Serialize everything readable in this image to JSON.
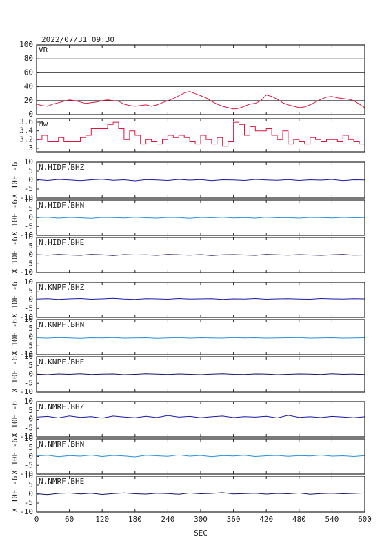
{
  "title": "2022/07/31 09:30",
  "chart_data": [
    {
      "type": "line",
      "label": "VR",
      "color": "#e0143c",
      "grid": true,
      "xlim": [
        0,
        600
      ],
      "ylim": [
        0,
        100
      ],
      "yticks": [
        0,
        20,
        40,
        60,
        80,
        100
      ],
      "x": [
        0,
        10,
        20,
        30,
        40,
        50,
        60,
        70,
        80,
        90,
        100,
        110,
        120,
        130,
        140,
        150,
        160,
        170,
        180,
        190,
        200,
        210,
        220,
        230,
        240,
        250,
        260,
        270,
        280,
        290,
        300,
        310,
        320,
        330,
        340,
        350,
        360,
        370,
        380,
        390,
        400,
        410,
        420,
        430,
        440,
        450,
        460,
        470,
        480,
        490,
        500,
        510,
        520,
        530,
        540,
        550,
        560,
        570,
        580,
        590,
        600
      ],
      "values": [
        15,
        13,
        12,
        15,
        17,
        19,
        21,
        20,
        18,
        16,
        17,
        18,
        20,
        21,
        20,
        19,
        15,
        13,
        12,
        13,
        14,
        12,
        14,
        17,
        20,
        23,
        27,
        31,
        33,
        30,
        27,
        24,
        19,
        15,
        12,
        10,
        8,
        9,
        12,
        15,
        16,
        20,
        28,
        26,
        22,
        17,
        14,
        12,
        10,
        11,
        14,
        18,
        22,
        25,
        26,
        24,
        23,
        22,
        20,
        15,
        10
      ]
    },
    {
      "type": "step",
      "label": "Mw",
      "color": "#e0143c",
      "grid": false,
      "xlim": [
        0,
        600
      ],
      "ylim": [
        2.92,
        3.68
      ],
      "yticks": [
        3.0,
        3.2,
        3.4,
        3.6
      ],
      "x": [
        0,
        10,
        20,
        30,
        40,
        50,
        60,
        70,
        80,
        90,
        100,
        110,
        120,
        130,
        140,
        150,
        160,
        170,
        180,
        190,
        200,
        210,
        220,
        230,
        240,
        250,
        260,
        270,
        280,
        290,
        300,
        310,
        320,
        330,
        340,
        350,
        360,
        370,
        380,
        390,
        400,
        410,
        420,
        430,
        440,
        450,
        460,
        470,
        480,
        490,
        500,
        510,
        520,
        530,
        540,
        550,
        560,
        570,
        580,
        590,
        600
      ],
      "values": [
        3.2,
        3.3,
        3.15,
        3.15,
        3.25,
        3.15,
        3.15,
        3.15,
        3.25,
        3.3,
        3.45,
        3.45,
        3.45,
        3.55,
        3.6,
        3.45,
        3.2,
        3.4,
        3.3,
        3.1,
        3.2,
        3.15,
        3.1,
        3.2,
        3.3,
        3.25,
        3.3,
        3.25,
        3.15,
        3.1,
        3.3,
        3.2,
        3.1,
        3.25,
        3.05,
        3.15,
        3.6,
        3.55,
        3.3,
        3.5,
        3.4,
        3.4,
        3.45,
        3.3,
        3.2,
        3.4,
        3.1,
        3.2,
        3.15,
        3.1,
        3.25,
        3.2,
        3.15,
        3.2,
        3.2,
        3.15,
        3.3,
        3.2,
        3.15,
        3.1,
        3.05
      ]
    },
    {
      "type": "line",
      "label": "N.HIDF.BHZ",
      "ylabel": "X 10E -6",
      "color": "#1a1aa8",
      "xlim": [
        0,
        600
      ],
      "ylim": [
        -10,
        10
      ],
      "yticks": [
        10,
        5,
        0,
        -5,
        -10
      ],
      "x": [
        0,
        20,
        40,
        60,
        80,
        100,
        120,
        140,
        160,
        180,
        200,
        220,
        240,
        260,
        280,
        300,
        320,
        340,
        360,
        380,
        400,
        420,
        440,
        460,
        480,
        500,
        520,
        540,
        560,
        580,
        600
      ],
      "values": [
        0.3,
        -0.2,
        0.4,
        0.1,
        -0.3,
        0.2,
        0.5,
        -0.1,
        0.2,
        -0.4,
        0.3,
        0.1,
        -0.2,
        0.4,
        0.0,
        0.3,
        -0.3,
        0.2,
        0.1,
        -0.2,
        0.4,
        0.1,
        -0.1,
        0.3,
        -0.2,
        0.2,
        0.0,
        0.4,
        -0.3,
        0.2,
        0.1
      ]
    },
    {
      "type": "line",
      "label": "N.HIDF.BHN",
      "ylabel": "X 10E -6",
      "color": "#2a90e0",
      "xlim": [
        0,
        600
      ],
      "ylim": [
        -10,
        10
      ],
      "yticks": [
        10,
        5,
        0,
        -5,
        -10
      ],
      "x": [
        0,
        20,
        40,
        60,
        80,
        100,
        120,
        140,
        160,
        180,
        200,
        220,
        240,
        260,
        280,
        300,
        320,
        340,
        360,
        380,
        400,
        420,
        440,
        460,
        480,
        500,
        520,
        540,
        560,
        580,
        600
      ],
      "values": [
        0.1,
        0.3,
        -0.2,
        0.2,
        0.0,
        -0.3,
        0.2,
        0.1,
        -0.1,
        0.3,
        0.0,
        -0.2,
        0.2,
        0.1,
        -0.3,
        0.2,
        0.0,
        0.3,
        -0.1,
        0.1,
        -0.2,
        0.3,
        0.0,
        0.1,
        -0.2,
        0.2,
        0.1,
        -0.1,
        0.2,
        0.0,
        0.1
      ]
    },
    {
      "type": "line",
      "label": "N.HIDF.BHE",
      "ylabel": "X 10E -6",
      "color": "#141466",
      "xlim": [
        0,
        600
      ],
      "ylim": [
        -10,
        10
      ],
      "yticks": [
        10,
        5,
        0,
        -5,
        -10
      ],
      "x": [
        0,
        20,
        40,
        60,
        80,
        100,
        120,
        140,
        160,
        180,
        200,
        220,
        240,
        260,
        280,
        300,
        320,
        340,
        360,
        380,
        400,
        420,
        440,
        460,
        480,
        500,
        520,
        540,
        560,
        580,
        600
      ],
      "values": [
        0.2,
        -0.1,
        0.3,
        0.0,
        -0.2,
        0.3,
        0.1,
        -0.3,
        0.2,
        0.0,
        0.1,
        -0.2,
        0.3,
        0.1,
        -0.1,
        0.2,
        -0.3,
        0.1,
        0.2,
        0.0,
        -0.2,
        0.3,
        0.1,
        -0.1,
        0.2,
        0.0,
        -0.2,
        0.1,
        0.3,
        -0.1,
        0.0
      ]
    },
    {
      "type": "line",
      "label": "N.KNPF.BHZ",
      "ylabel": "X 10E -6",
      "color": "#1a1aa8",
      "xlim": [
        0,
        600
      ],
      "ylim": [
        -10,
        10
      ],
      "yticks": [
        10,
        5,
        0,
        -5,
        -10
      ],
      "x": [
        0,
        20,
        40,
        60,
        80,
        100,
        120,
        140,
        160,
        180,
        200,
        220,
        240,
        260,
        280,
        300,
        320,
        340,
        360,
        380,
        400,
        420,
        440,
        460,
        480,
        500,
        520,
        540,
        560,
        580,
        600
      ],
      "values": [
        0.5,
        0.7,
        0.3,
        0.6,
        0.8,
        0.4,
        0.6,
        0.9,
        0.5,
        0.3,
        0.7,
        0.6,
        0.4,
        0.8,
        0.5,
        0.6,
        0.7,
        0.3,
        0.6,
        0.5,
        0.8,
        0.4,
        0.6,
        0.7,
        0.5,
        0.4,
        0.8,
        0.6,
        0.5,
        0.7,
        0.6
      ]
    },
    {
      "type": "line",
      "label": "N.KNPF.BHN",
      "ylabel": "X 10E -6",
      "color": "#2a90e0",
      "xlim": [
        0,
        600
      ],
      "ylim": [
        -10,
        10
      ],
      "yticks": [
        10,
        5,
        0,
        -5,
        -10
      ],
      "x": [
        0,
        20,
        40,
        60,
        80,
        100,
        120,
        140,
        160,
        180,
        200,
        220,
        240,
        260,
        280,
        300,
        320,
        340,
        360,
        380,
        400,
        420,
        440,
        460,
        480,
        500,
        520,
        540,
        560,
        580,
        600
      ],
      "values": [
        -0.4,
        -0.6,
        -0.3,
        -0.5,
        -0.7,
        -0.4,
        -0.5,
        -0.3,
        -0.6,
        -0.5,
        -0.4,
        -0.7,
        -0.5,
        -0.3,
        -0.6,
        -0.4,
        -0.5,
        -0.6,
        -0.3,
        -0.5,
        -0.4,
        -0.6,
        -0.5,
        -0.4,
        -0.3,
        -0.6,
        -0.5,
        -0.4,
        -0.6,
        -0.5,
        -0.4
      ]
    },
    {
      "type": "line",
      "label": "N.KNPF.BHE",
      "ylabel": "X 10E -6",
      "color": "#141466",
      "xlim": [
        0,
        600
      ],
      "ylim": [
        -10,
        10
      ],
      "yticks": [
        10,
        5,
        0,
        -5,
        -10
      ],
      "x": [
        0,
        20,
        40,
        60,
        80,
        100,
        120,
        140,
        160,
        180,
        200,
        220,
        240,
        260,
        280,
        300,
        320,
        340,
        360,
        380,
        400,
        420,
        440,
        460,
        480,
        500,
        520,
        540,
        560,
        580,
        600
      ],
      "values": [
        0.1,
        -0.2,
        0.2,
        0.0,
        0.3,
        -0.1,
        0.1,
        0.2,
        -0.2,
        0.0,
        0.3,
        0.1,
        -0.1,
        0.2,
        0.0,
        -0.2,
        0.1,
        0.3,
        0.0,
        -0.1,
        0.2,
        0.1,
        -0.2,
        0.0,
        0.2,
        0.1,
        -0.1,
        0.3,
        0.0,
        0.1,
        -0.1
      ]
    },
    {
      "type": "line",
      "label": "N.NMRF.BHZ",
      "ylabel": "X 10E -6",
      "color": "#1a1aa8",
      "xlim": [
        0,
        600
      ],
      "ylim": [
        -10,
        10
      ],
      "yticks": [
        10,
        5,
        0,
        -5,
        -10
      ],
      "x": [
        0,
        20,
        40,
        60,
        80,
        100,
        120,
        140,
        160,
        180,
        200,
        220,
        240,
        260,
        280,
        300,
        320,
        340,
        360,
        380,
        400,
        420,
        440,
        460,
        480,
        500,
        520,
        540,
        560,
        580,
        600
      ],
      "values": [
        1.2,
        1.6,
        0.8,
        1.9,
        1.1,
        1.5,
        0.7,
        1.8,
        1.3,
        0.9,
        1.7,
        1.0,
        2.1,
        1.2,
        1.6,
        0.9,
        1.4,
        1.8,
        1.0,
        1.5,
        1.2,
        1.7,
        0.8,
        2.2,
        1.1,
        1.4,
        1.0,
        1.6,
        1.3,
        0.9,
        1.4
      ]
    },
    {
      "type": "line",
      "label": "N.NMRF.BHN",
      "ylabel": "X 10E -6",
      "color": "#2a90e0",
      "xlim": [
        0,
        600
      ],
      "ylim": [
        -10,
        10
      ],
      "yticks": [
        10,
        5,
        0,
        -5,
        -10
      ],
      "x": [
        0,
        20,
        40,
        60,
        80,
        100,
        120,
        140,
        160,
        180,
        200,
        220,
        240,
        260,
        280,
        300,
        320,
        340,
        360,
        380,
        400,
        420,
        440,
        460,
        480,
        500,
        520,
        540,
        560,
        580,
        600
      ],
      "values": [
        0.3,
        0.7,
        -0.1,
        0.5,
        0.2,
        0.8,
        0.0,
        0.6,
        0.3,
        -0.2,
        0.7,
        0.4,
        0.1,
        0.9,
        0.2,
        0.6,
        -0.1,
        0.5,
        0.3,
        0.7,
        0.0,
        0.4,
        0.6,
        0.1,
        0.5,
        0.3,
        0.8,
        0.2,
        0.4,
        0.0,
        0.5
      ]
    },
    {
      "type": "line",
      "label": "N.NMRF.BHE",
      "ylabel": "X 10E -6",
      "color": "#141466",
      "xlabel": "SEC",
      "xlim": [
        0,
        600
      ],
      "ylim": [
        -10,
        10
      ],
      "yticks": [
        10,
        5,
        0,
        -5,
        -10
      ],
      "xticks": [
        0,
        60,
        120,
        180,
        240,
        300,
        360,
        420,
        480,
        540,
        600
      ],
      "x": [
        0,
        20,
        40,
        60,
        80,
        100,
        120,
        140,
        160,
        180,
        200,
        220,
        240,
        260,
        280,
        300,
        320,
        340,
        360,
        380,
        400,
        420,
        440,
        460,
        480,
        500,
        520,
        540,
        560,
        580,
        600
      ],
      "values": [
        0.2,
        -0.3,
        0.4,
        0.6,
        0.1,
        0.5,
        -0.2,
        0.3,
        0.7,
        0.2,
        0.0,
        0.5,
        0.3,
        -0.1,
        0.6,
        0.2,
        0.4,
        0.8,
        0.1,
        0.3,
        0.5,
        0.0,
        0.4,
        0.2,
        0.6,
        -0.1,
        0.3,
        0.5,
        0.2,
        0.4,
        0.6
      ]
    }
  ]
}
